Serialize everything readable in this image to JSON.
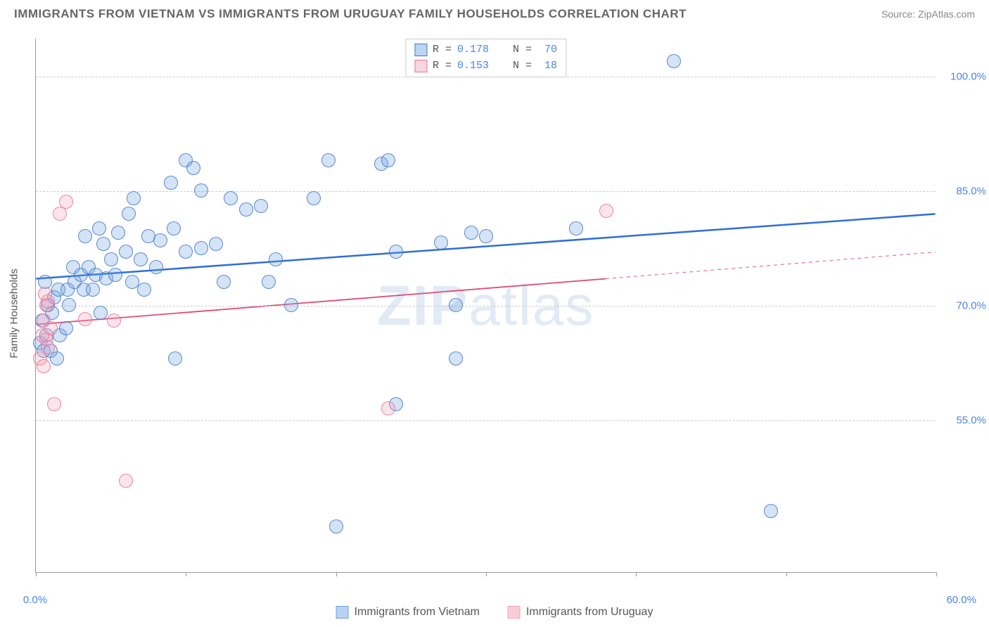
{
  "title": "IMMIGRANTS FROM VIETNAM VS IMMIGRANTS FROM URUGUAY FAMILY HOUSEHOLDS CORRELATION CHART",
  "source": "Source: ZipAtlas.com",
  "y_axis_label": "Family Households",
  "watermark": {
    "bold": "ZIP",
    "thin": "atlas"
  },
  "chart": {
    "type": "scatter",
    "background_color": "#ffffff",
    "grid_color": "#cccccc",
    "axis_line_color": "#999999",
    "tick_label_color": "#4a86e8",
    "axis_label_color": "#555555",
    "marker_radius": 10,
    "marker_fill_opacity": 0.3,
    "marker_stroke_opacity": 0.85,
    "marker_stroke_width": 1.5,
    "xlim": [
      0,
      60
    ],
    "ylim": [
      35,
      105
    ],
    "x_ticks": [
      0,
      10,
      20,
      30,
      40,
      50,
      60
    ],
    "x_tick_labels": {
      "0": "0.0%",
      "60": "60.0%"
    },
    "y_ticks": [
      55,
      70,
      85,
      100
    ],
    "y_tick_labels": {
      "55": "55.0%",
      "70": "70.0%",
      "85": "85.0%",
      "100": "100.0%"
    },
    "series": [
      {
        "name": "Immigrants from Vietnam",
        "color": "#6fa1e0",
        "stroke": "#3f78c8",
        "r_value": "0.178",
        "n_value": "70",
        "trend": {
          "x1": 0,
          "y1": 73.5,
          "x2": 60,
          "y2": 82.0,
          "color": "#2e6fd6",
          "width": 2.5,
          "dash": null
        },
        "points": [
          [
            0.3,
            65
          ],
          [
            0.5,
            64
          ],
          [
            0.4,
            68
          ],
          [
            0.8,
            70
          ],
          [
            0.6,
            73
          ],
          [
            0.7,
            66
          ],
          [
            1.0,
            64
          ],
          [
            1.2,
            71
          ],
          [
            1.1,
            69
          ],
          [
            1.5,
            72
          ],
          [
            1.6,
            66
          ],
          [
            1.4,
            63
          ],
          [
            2.0,
            67
          ],
          [
            2.1,
            72
          ],
          [
            2.2,
            70
          ],
          [
            2.5,
            75
          ],
          [
            2.6,
            73
          ],
          [
            3.0,
            74
          ],
          [
            3.2,
            72
          ],
          [
            3.3,
            79
          ],
          [
            3.5,
            75
          ],
          [
            3.8,
            72
          ],
          [
            4.0,
            74
          ],
          [
            4.2,
            80
          ],
          [
            4.3,
            69
          ],
          [
            4.5,
            78
          ],
          [
            4.7,
            73.5
          ],
          [
            5.0,
            76
          ],
          [
            5.3,
            74
          ],
          [
            5.5,
            79.5
          ],
          [
            6.0,
            77
          ],
          [
            6.2,
            82
          ],
          [
            6.5,
            84
          ],
          [
            6.4,
            73
          ],
          [
            7.0,
            76
          ],
          [
            7.2,
            72
          ],
          [
            7.5,
            79
          ],
          [
            8.0,
            75
          ],
          [
            8.3,
            78.5
          ],
          [
            9.0,
            86
          ],
          [
            9.2,
            80
          ],
          [
            9.3,
            63
          ],
          [
            10.0,
            77
          ],
          [
            10.0,
            89
          ],
          [
            10.5,
            88
          ],
          [
            11.0,
            85
          ],
          [
            11.0,
            77.5
          ],
          [
            12.0,
            78
          ],
          [
            12.5,
            73
          ],
          [
            13.0,
            84
          ],
          [
            14.0,
            82.5
          ],
          [
            15.0,
            83
          ],
          [
            15.5,
            73
          ],
          [
            16.0,
            76
          ],
          [
            17.0,
            70
          ],
          [
            18.5,
            84
          ],
          [
            19.5,
            89
          ],
          [
            20.0,
            41
          ],
          [
            23.0,
            88.5
          ],
          [
            23.5,
            89
          ],
          [
            24.0,
            77
          ],
          [
            24.0,
            57
          ],
          [
            27.0,
            78.2
          ],
          [
            28.0,
            70
          ],
          [
            29.0,
            79.5
          ],
          [
            30.0,
            79
          ],
          [
            36.0,
            80
          ],
          [
            42.5,
            102
          ],
          [
            49,
            43
          ],
          [
            28,
            63
          ]
        ]
      },
      {
        "name": "Immigrants from Uruguay",
        "color": "#f3a7bb",
        "stroke": "#e87394",
        "r_value": "0.153",
        "n_value": "18",
        "trend": {
          "x1": 0,
          "y1": 67.5,
          "x2": 38,
          "y2": 73.5,
          "color": "#e24d77",
          "width": 1.8,
          "dash": null
        },
        "trend_ext": {
          "x1": 38,
          "y1": 73.5,
          "x2": 60,
          "y2": 77.0,
          "color": "#e87394",
          "width": 1.2,
          "dash": "5,5"
        },
        "points": [
          [
            0.3,
            63
          ],
          [
            0.5,
            62
          ],
          [
            0.5,
            68
          ],
          [
            0.7,
            65.5
          ],
          [
            0.7,
            70
          ],
          [
            0.6,
            71.5
          ],
          [
            0.8,
            70.5
          ],
          [
            0.4,
            66
          ],
          [
            0.8,
            64.5
          ],
          [
            1.0,
            67
          ],
          [
            1.2,
            57
          ],
          [
            1.6,
            82
          ],
          [
            2.0,
            83.5
          ],
          [
            3.3,
            68.2
          ],
          [
            5.2,
            68
          ],
          [
            6.0,
            47
          ],
          [
            23.5,
            56.5
          ],
          [
            38,
            82.3
          ]
        ]
      }
    ]
  },
  "bottom_legend": [
    {
      "label": "Immigrants from Vietnam",
      "fill": "#b9d1f0",
      "stroke": "#6fa1e0"
    },
    {
      "label": "Immigrants from Uruguay",
      "fill": "#f8cdd8",
      "stroke": "#f3a7bb"
    }
  ],
  "top_legend": {
    "r_label": "R =",
    "n_label": "N ="
  }
}
